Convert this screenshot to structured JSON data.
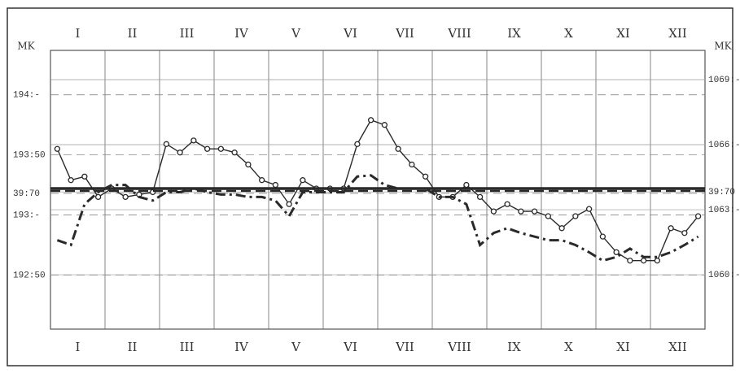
{
  "chart_data": {
    "type": "line",
    "months": [
      "I",
      "II",
      "III",
      "IV",
      "V",
      "VI",
      "VII",
      "VIII",
      "IX",
      "X",
      "XI",
      "XII"
    ],
    "y_label": "MK",
    "y2_label": "MK",
    "xlim": [
      0,
      12
    ],
    "ylim": [
      192.05,
      194.37
    ],
    "yticks": [
      {
        "value": 194,
        "label": "194:-"
      },
      {
        "value": 193.5,
        "label": "193:50"
      },
      {
        "value": 193.18,
        "label": "39:70"
      },
      {
        "value": 193,
        "label": "193:-"
      },
      {
        "value": 192.5,
        "label": "192:50"
      }
    ],
    "y2lim": [
      1057.49,
      1070.35
    ],
    "y2ticks": [
      {
        "value": 1069,
        "label": "1069:-"
      },
      {
        "value": 1066,
        "label": "1066:-"
      },
      {
        "value": 1063.82,
        "label": "39:70"
      },
      {
        "value": 1063,
        "label": "1063:-"
      },
      {
        "value": 1060,
        "label": "1060:-"
      }
    ],
    "series": [
      {
        "style": "circles",
        "color": "#2a2a2a",
        "x": [
          0.125,
          0.375,
          0.625,
          0.875,
          1.125,
          1.375,
          1.625,
          1.875,
          2.125,
          2.375,
          2.625,
          2.875,
          3.125,
          3.375,
          3.625,
          3.875,
          4.125,
          4.375,
          4.625,
          4.875,
          5.125,
          5.375,
          5.625,
          5.875,
          6.125,
          6.375,
          6.625,
          6.875,
          7.125,
          7.375,
          7.625,
          7.875,
          8.125,
          8.375,
          8.625,
          8.875,
          9.125,
          9.375,
          9.625,
          9.875,
          10.125,
          10.375,
          10.625,
          10.875,
          11.125,
          11.375,
          11.625,
          11.875
        ],
        "values": [
          193.55,
          193.29,
          193.32,
          193.15,
          193.22,
          193.15,
          193.17,
          193.19,
          193.59,
          193.52,
          193.62,
          193.55,
          193.55,
          193.52,
          193.42,
          193.29,
          193.25,
          193.09,
          193.29,
          193.22,
          193.22,
          193.22,
          193.59,
          193.79,
          193.75,
          193.55,
          193.42,
          193.32,
          193.15,
          193.15,
          193.25,
          193.15,
          193.03,
          193.09,
          193.03,
          193.03,
          192.99,
          192.89,
          192.99,
          193.05,
          192.82,
          192.69,
          192.62,
          192.62,
          192.62,
          192.89,
          192.85,
          192.99
        ]
      },
      {
        "style": "dashdot",
        "color": "#2a2a2a",
        "x": [
          0.125,
          0.375,
          0.625,
          0.875,
          1.125,
          1.375,
          1.625,
          1.875,
          2.125,
          2.375,
          2.625,
          2.875,
          3.125,
          3.375,
          3.625,
          3.875,
          4.125,
          4.375,
          4.625,
          4.875,
          5.125,
          5.375,
          5.625,
          5.875,
          6.125,
          6.375,
          6.625,
          6.875,
          7.125,
          7.375,
          7.625,
          7.875,
          8.125,
          8.375,
          8.625,
          8.875,
          9.125,
          9.375,
          9.625,
          9.875,
          10.125,
          10.375,
          10.625,
          10.875,
          11.125,
          11.375,
          11.625,
          11.875
        ],
        "values": [
          192.79,
          192.75,
          193.09,
          193.19,
          193.25,
          193.25,
          193.15,
          193.12,
          193.19,
          193.19,
          193.22,
          193.19,
          193.17,
          193.17,
          193.15,
          193.15,
          193.12,
          192.99,
          193.19,
          193.19,
          193.19,
          193.19,
          193.32,
          193.33,
          193.25,
          193.22,
          193.22,
          193.22,
          193.15,
          193.15,
          193.09,
          192.75,
          192.85,
          192.89,
          192.85,
          192.82,
          192.79,
          192.79,
          192.75,
          192.69,
          192.62,
          192.65,
          192.72,
          192.65,
          192.65,
          192.69,
          192.75,
          192.82
        ]
      },
      {
        "style": "dashed",
        "color": "#2a2a2a",
        "x": [
          0,
          12
        ],
        "values": [
          193.2,
          193.2
        ]
      },
      {
        "style": "solid",
        "color": "#2a2a2a",
        "x": [
          0,
          12
        ],
        "values": [
          193.22,
          193.22
        ]
      }
    ]
  }
}
